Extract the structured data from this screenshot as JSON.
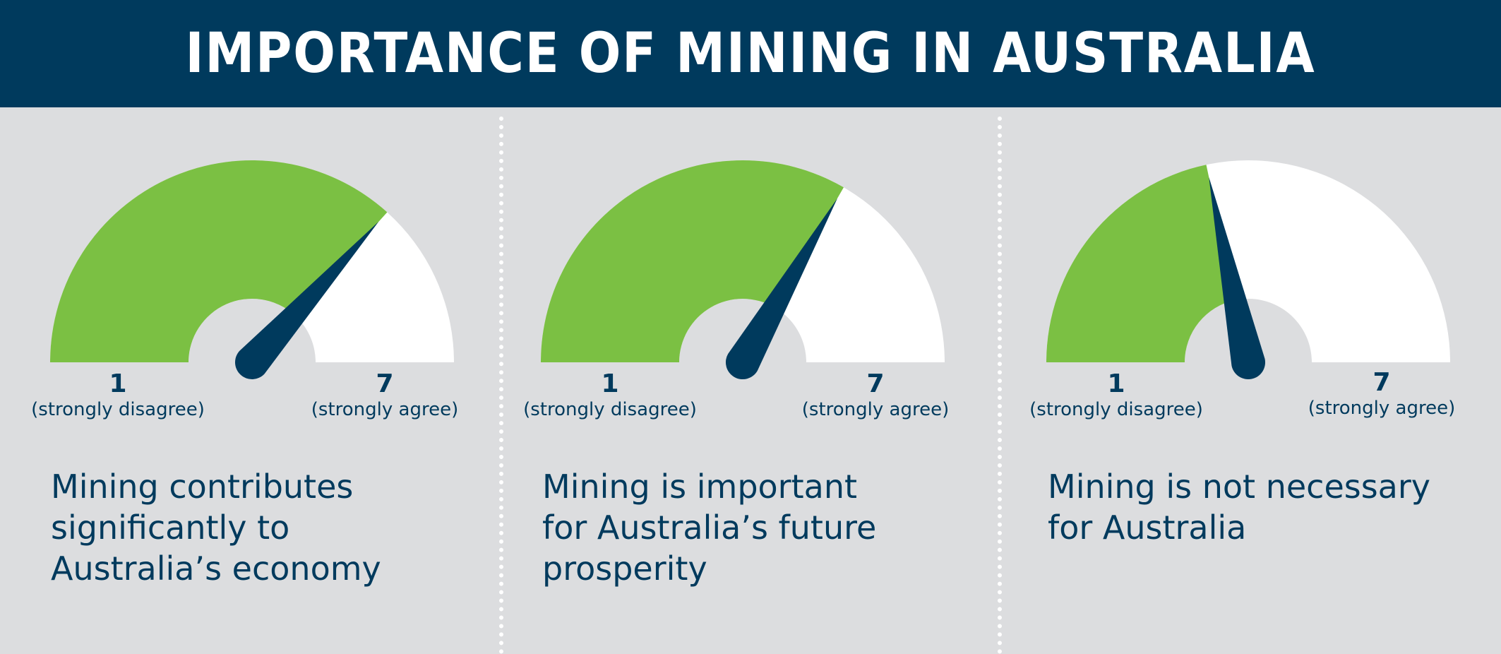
{
  "header": {
    "title": "IMPORTANCE OF MINING IN AUSTRALIA"
  },
  "colors": {
    "banner": "#003a5d",
    "background": "#dcdddf",
    "fill": "#7bc043",
    "track": "#ffffff",
    "needle": "#003a5d",
    "text": "#003a5d"
  },
  "chart_data": [
    {
      "type": "gauge",
      "scale_min": 1,
      "scale_max": 7,
      "min_label": "1",
      "min_caption": "(strongly disagree)",
      "max_label": "7",
      "max_caption": "(strongly agree)",
      "value": 5.4,
      "statement": "Mining contributes\nsignificantly to\nAustralia’s economy"
    },
    {
      "type": "gauge",
      "scale_min": 1,
      "scale_max": 7,
      "min_label": "1",
      "min_caption": "(strongly disagree)",
      "max_label": "7",
      "max_caption": "(strongly agree)",
      "value": 5.0,
      "statement": "Mining is important\nfor Australia’s future\nprosperity"
    },
    {
      "type": "gauge",
      "scale_min": 1,
      "scale_max": 7,
      "min_label": "1",
      "min_caption": "(strongly disagree)",
      "max_label": "7",
      "max_caption": "(strongly agree)",
      "value": 3.6,
      "statement": "Mining is not necessary\nfor Australia"
    }
  ]
}
